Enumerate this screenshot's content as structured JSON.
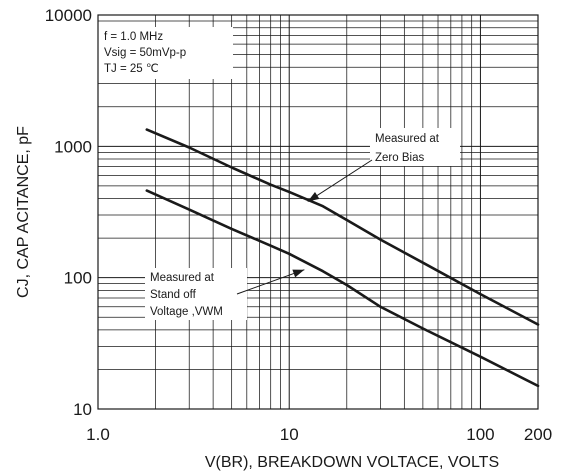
{
  "chart_data": {
    "type": "line",
    "xlabel": "V(BR), BREAKDOWN VOLTACE, VOLTS",
    "ylabel": "CJ, CAP ACITANCE, pF",
    "x_scale": "log",
    "y_scale": "log",
    "xlim": [
      1,
      200
    ],
    "ylim": [
      10,
      10000
    ],
    "x_ticks": [
      {
        "value": 1,
        "label": "1.0"
      },
      {
        "value": 10,
        "label": "10"
      },
      {
        "value": 100,
        "label": "100"
      },
      {
        "value": 200,
        "label": "200"
      }
    ],
    "y_ticks": [
      {
        "value": 10,
        "label": "10"
      },
      {
        "value": 100,
        "label": "100"
      },
      {
        "value": 1000,
        "label": "1000"
      },
      {
        "value": 10000,
        "label": "10000"
      }
    ],
    "grid": true,
    "conditions": [
      "f = 1.0 MHz",
      "Vsig = 50mVp-p",
      "TJ = 25 ℃"
    ],
    "series": [
      {
        "x": [
          1.8,
          3,
          5,
          8,
          10,
          15,
          20,
          30,
          50,
          100,
          200
        ],
        "y": [
          1340,
          980,
          690,
          510,
          450,
          350,
          275,
          195,
          130,
          75,
          44
        ]
      },
      {
        "x": [
          1.8,
          3,
          5,
          8,
          10,
          15,
          20,
          30,
          50,
          100,
          200
        ],
        "y": [
          460,
          330,
          235,
          175,
          152,
          112,
          88,
          60,
          41,
          25,
          15
        ]
      }
    ],
    "annotations": [
      {
        "lines": [
          "Measured at",
          "Zero Bias"
        ],
        "target_series": 0,
        "target_x": 12.5,
        "target_y": 380
      },
      {
        "lines": [
          "Measured at",
          "Stand off",
          "Voltage ,VWM"
        ],
        "target_series": 1,
        "target_x": 12,
        "target_y": 115
      }
    ],
    "line_color": "#1a1a1a",
    "grid_color": "#1a1a1a"
  }
}
